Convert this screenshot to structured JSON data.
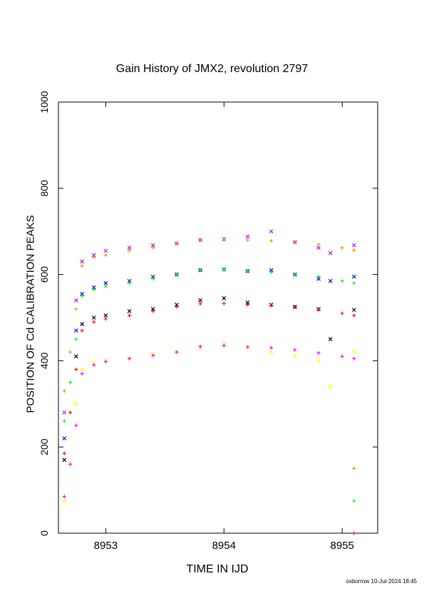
{
  "chart_data": {
    "type": "scatter",
    "title": "Gain History of JMX2, revolution 2797",
    "xlabel": "TIME IN IJD",
    "ylabel": "POSITION OF Cd CALIBRATION PEAKS",
    "xlim": [
      8952.6,
      8955.3
    ],
    "ylim": [
      0,
      1000
    ],
    "xticks": [
      8953,
      8954,
      8955
    ],
    "yticks": [
      0,
      200,
      400,
      600,
      800,
      1000
    ],
    "grid": false,
    "series": [
      {
        "marker": "x",
        "color": "#a020f0",
        "x": [
          8952.65,
          8952.75,
          8952.8,
          8952.9,
          8953.0,
          8953.2,
          8953.4,
          8953.6,
          8953.8,
          8954.0,
          8954.2,
          8954.4,
          8954.6,
          8954.8,
          8954.9,
          8955.1
        ],
        "y": [
          280,
          540,
          630,
          645,
          655,
          662,
          668,
          672,
          680,
          682,
          688,
          700,
          675,
          662,
          650,
          668
        ]
      },
      {
        "marker": "x",
        "color": "#0000ff",
        "x": [
          8952.65,
          8952.75,
          8952.8,
          8952.9,
          8953.0,
          8953.2,
          8953.4,
          8953.6,
          8953.8,
          8954.0,
          8954.2,
          8954.4,
          8954.6,
          8954.8,
          8954.9,
          8955.1
        ],
        "y": [
          220,
          470,
          555,
          570,
          580,
          585,
          595,
          600,
          610,
          612,
          608,
          610,
          600,
          590,
          585,
          595
        ]
      },
      {
        "marker": "x",
        "color": "#000000",
        "x": [
          8952.65,
          8952.75,
          8952.8,
          8952.9,
          8953.0,
          8953.2,
          8953.4,
          8953.6,
          8953.8,
          8954.0,
          8954.2,
          8954.4,
          8954.6,
          8954.8,
          8954.9,
          8955.1
        ],
        "y": [
          170,
          410,
          485,
          500,
          505,
          515,
          520,
          530,
          540,
          545,
          535,
          530,
          525,
          520,
          450,
          518
        ]
      },
      {
        "marker": "x",
        "color": "#ffff00",
        "x": [
          8952.65,
          8952.75,
          8952.8,
          8952.9,
          8953.0,
          8953.2,
          8953.4,
          8953.6,
          8953.8,
          8954.0,
          8954.2,
          8954.4,
          8954.6,
          8954.8,
          8954.9,
          8955.1
        ],
        "y": [
          75,
          300,
          380,
          395,
          400,
          405,
          415,
          420,
          430,
          440,
          430,
          420,
          410,
          400,
          340,
          420
        ]
      },
      {
        "marker": "+",
        "color": "#ff8c00",
        "x": [
          8952.65,
          8952.7,
          8952.75,
          8952.8,
          8952.9,
          8953.0,
          8953.2,
          8953.4,
          8953.6,
          8953.8,
          8954.0,
          8954.2,
          8954.4,
          8954.6,
          8954.8,
          8955.0,
          8955.1,
          8955.1
        ],
        "y": [
          330,
          420,
          520,
          620,
          640,
          645,
          655,
          662,
          672,
          680,
          680,
          680,
          678,
          675,
          670,
          662,
          656,
          150
        ]
      },
      {
        "marker": "+",
        "color": "#00ff00",
        "x": [
          8952.65,
          8952.7,
          8952.75,
          8952.8,
          8952.9,
          8953.0,
          8953.2,
          8953.4,
          8953.6,
          8953.8,
          8954.0,
          8954.2,
          8954.4,
          8954.6,
          8954.8,
          8955.0,
          8955.1,
          8955.1
        ],
        "y": [
          260,
          350,
          450,
          550,
          565,
          572,
          580,
          590,
          600,
          610,
          610,
          608,
          605,
          600,
          595,
          585,
          580,
          75
        ]
      },
      {
        "marker": "+",
        "color": "#ff0000",
        "x": [
          8952.65,
          8952.7,
          8952.75,
          8952.8,
          8952.9,
          8953.0,
          8953.2,
          8953.4,
          8953.6,
          8953.8,
          8954.0,
          8954.2,
          8954.4,
          8954.6,
          8954.8,
          8955.0,
          8955.1,
          8955.1
        ],
        "y": [
          185,
          280,
          380,
          470,
          490,
          497,
          505,
          515,
          525,
          532,
          533,
          530,
          528,
          525,
          518,
          510,
          505,
          0
        ]
      },
      {
        "marker": "+",
        "color": "#ff00ff",
        "x": [
          8952.65,
          8952.7,
          8952.75,
          8952.8,
          8952.9,
          8953.0,
          8953.2,
          8953.4,
          8953.6,
          8953.8,
          8954.0,
          8954.2,
          8954.4,
          8954.6,
          8954.8,
          8955.0,
          8955.1
        ],
        "y": [
          85,
          160,
          250,
          370,
          390,
          398,
          405,
          412,
          420,
          433,
          435,
          432,
          430,
          425,
          418,
          410,
          405
        ]
      }
    ]
  },
  "footer": "oxborrow 10-Jul-2024 18:45"
}
